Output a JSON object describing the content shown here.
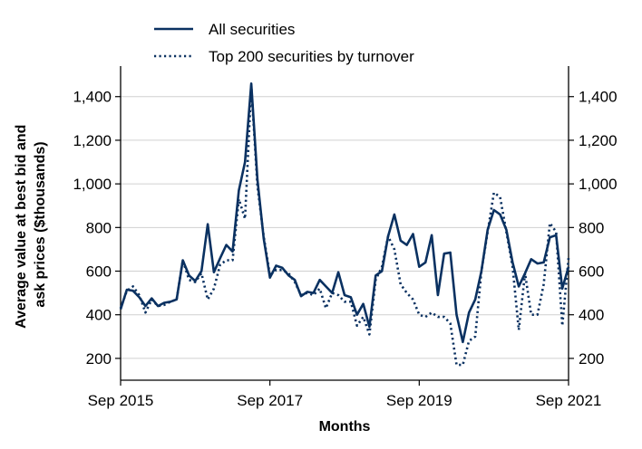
{
  "chart_data": {
    "type": "line",
    "title": "",
    "xlabel": "Months",
    "ylabel_lines": [
      "Average value at best bid and",
      "ask prices ($thousands)"
    ],
    "x_ticks": [
      "Sep 2015",
      "Sep 2017",
      "Sep 2019",
      "Sep 2021"
    ],
    "x_range": [
      "2015-09",
      "2021-09"
    ],
    "y_ticks": [
      "200",
      "400",
      "600",
      "800",
      "1,000",
      "1,200",
      "1,400"
    ],
    "y_tick_values": [
      200,
      400,
      600,
      800,
      1000,
      1200,
      1400
    ],
    "ylim": [
      100,
      1540
    ],
    "grid": "horizontal",
    "legend_position": "top-left",
    "color": "#0a3161",
    "x": [
      "2015-09",
      "2015-10",
      "2015-11",
      "2015-12",
      "2016-01",
      "2016-02",
      "2016-03",
      "2016-04",
      "2016-05",
      "2016-06",
      "2016-07",
      "2016-08",
      "2016-09",
      "2016-10",
      "2016-11",
      "2016-12",
      "2017-01",
      "2017-02",
      "2017-03",
      "2017-04",
      "2017-05",
      "2017-06",
      "2017-07",
      "2017-08",
      "2017-09",
      "2017-10",
      "2017-11",
      "2017-12",
      "2018-01",
      "2018-02",
      "2018-03",
      "2018-04",
      "2018-05",
      "2018-06",
      "2018-07",
      "2018-08",
      "2018-09",
      "2018-10",
      "2018-11",
      "2018-12",
      "2019-01",
      "2019-02",
      "2019-03",
      "2019-04",
      "2019-05",
      "2019-06",
      "2019-07",
      "2019-08",
      "2019-09",
      "2019-10",
      "2019-11",
      "2019-12",
      "2020-01",
      "2020-02",
      "2020-03",
      "2020-04",
      "2020-05",
      "2020-06",
      "2020-07",
      "2020-08",
      "2020-09",
      "2020-10",
      "2020-11",
      "2020-12",
      "2021-01",
      "2021-02",
      "2021-03",
      "2021-04",
      "2021-05",
      "2021-06",
      "2021-07",
      "2021-08",
      "2021-09"
    ],
    "series": [
      {
        "name": "All securities",
        "style": "solid",
        "values": [
          425,
          515,
          510,
          480,
          440,
          475,
          440,
          455,
          460,
          470,
          650,
          580,
          555,
          600,
          815,
          595,
          660,
          720,
          690,
          970,
          1100,
          1460,
          1020,
          750,
          570,
          625,
          615,
          580,
          560,
          485,
          505,
          500,
          560,
          530,
          500,
          595,
          490,
          480,
          400,
          450,
          345,
          580,
          600,
          760,
          860,
          740,
          720,
          770,
          620,
          640,
          765,
          490,
          680,
          685,
          400,
          275,
          410,
          470,
          600,
          790,
          880,
          860,
          790,
          640,
          530,
          590,
          655,
          635,
          640,
          755,
          765,
          520,
          620
        ]
      },
      {
        "name": "Top 200 securities by turnover",
        "style": "dotted",
        "values": [
          430,
          510,
          530,
          490,
          410,
          470,
          440,
          445,
          460,
          470,
          650,
          560,
          550,
          590,
          470,
          520,
          630,
          650,
          650,
          930,
          840,
          1450,
          990,
          760,
          580,
          605,
          605,
          590,
          550,
          490,
          500,
          490,
          520,
          430,
          500,
          490,
          460,
          460,
          350,
          390,
          310,
          560,
          620,
          760,
          700,
          540,
          500,
          470,
          400,
          390,
          410,
          390,
          390,
          360,
          170,
          170,
          280,
          300,
          600,
          780,
          960,
          940,
          780,
          620,
          330,
          590,
          400,
          400,
          540,
          820,
          780,
          350,
          660
        ]
      }
    ]
  }
}
